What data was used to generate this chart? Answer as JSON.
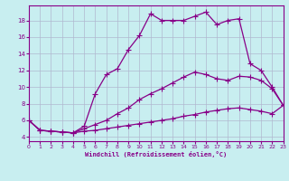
{
  "xlabel": "Windchill (Refroidissement éolien,°C)",
  "background_color": "#c8eef0",
  "grid_color": "#b0b8d0",
  "line_color": "#880088",
  "xlim": [
    0,
    23
  ],
  "ylim": [
    3.5,
    19.8
  ],
  "xticks": [
    0,
    1,
    2,
    3,
    4,
    5,
    6,
    7,
    8,
    9,
    10,
    11,
    12,
    13,
    14,
    15,
    16,
    17,
    18,
    19,
    20,
    21,
    22,
    23
  ],
  "yticks": [
    4,
    6,
    8,
    10,
    12,
    14,
    16,
    18
  ],
  "series1_x": [
    0,
    1,
    2,
    3,
    4,
    5,
    6,
    7,
    8,
    9,
    10,
    11,
    12,
    13,
    14,
    15,
    16,
    17,
    18,
    19,
    20,
    21,
    22,
    23
  ],
  "series1_y": [
    6.0,
    4.8,
    4.7,
    4.6,
    4.5,
    4.7,
    4.8,
    5.0,
    5.2,
    5.4,
    5.6,
    5.8,
    6.0,
    6.2,
    6.5,
    6.7,
    7.0,
    7.2,
    7.4,
    7.5,
    7.3,
    7.1,
    6.8,
    7.8
  ],
  "series2_x": [
    0,
    1,
    2,
    3,
    4,
    5,
    6,
    7,
    8,
    9,
    10,
    11,
    12,
    13,
    14,
    15,
    16,
    17,
    18,
    19,
    20,
    21,
    22,
    23
  ],
  "series2_y": [
    6.0,
    4.8,
    4.7,
    4.6,
    4.5,
    5.0,
    5.5,
    6.0,
    6.8,
    7.5,
    8.5,
    9.2,
    9.8,
    10.5,
    11.2,
    11.8,
    11.5,
    11.0,
    10.8,
    11.3,
    11.2,
    10.8,
    9.8,
    7.8
  ],
  "series3_x": [
    0,
    1,
    2,
    3,
    4,
    5,
    6,
    7,
    8,
    9,
    10,
    11,
    12,
    13,
    14,
    15,
    16,
    17,
    18,
    19,
    20,
    21,
    22,
    23
  ],
  "series3_y": [
    6.0,
    4.8,
    4.7,
    4.6,
    4.5,
    5.3,
    9.2,
    11.5,
    12.2,
    14.5,
    16.2,
    18.8,
    18.0,
    18.0,
    18.0,
    18.5,
    19.0,
    17.5,
    18.0,
    18.2,
    12.8,
    12.0,
    10.0,
    7.8
  ],
  "marker": "P",
  "markersize": 3,
  "linewidth": 0.9,
  "tick_fontsize": 4.5,
  "xlabel_fontsize": 5.0
}
